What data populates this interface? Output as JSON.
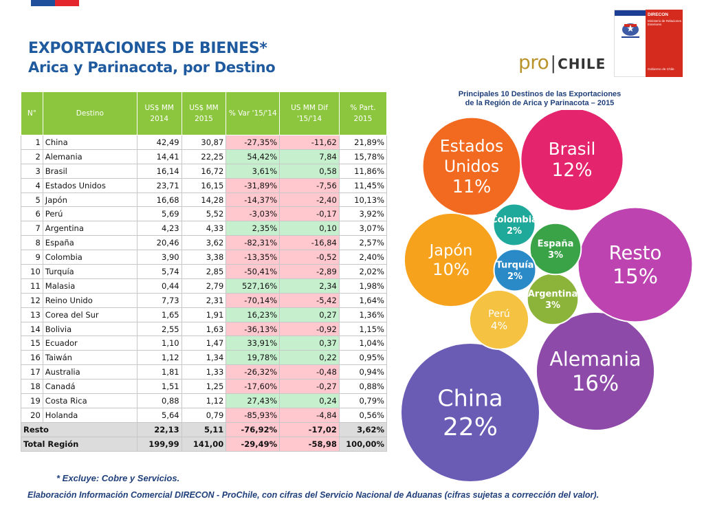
{
  "header": {
    "title": "EXPORTACIONES DE BIENES*",
    "subtitle": "Arica y Parinacota, por Destino"
  },
  "logos": {
    "prochile_pro": "pro",
    "prochile_sep": "|",
    "prochile_chile": "CHILE",
    "direcon_name": "DIRECON",
    "direcon_ministry": "Ministerio de Relaciones Exteriores",
    "direcon_gov": "Gobierno de Chile"
  },
  "table": {
    "headers": [
      "N°",
      "Destino",
      "US$ MM 2014",
      "US$ MM 2015",
      "% Var '15/'14",
      "US MM Dif '15/'14",
      "% Part. 2015"
    ],
    "rows": [
      {
        "n": "1",
        "destino": "China",
        "v2014": "42,49",
        "v2015": "30,87",
        "var": "-27,35%",
        "dif": "-11,62",
        "part": "21,89%",
        "sign": "neg"
      },
      {
        "n": "2",
        "destino": "Alemania",
        "v2014": "14,41",
        "v2015": "22,25",
        "var": "54,42%",
        "dif": "7,84",
        "part": "15,78%",
        "sign": "pos"
      },
      {
        "n": "3",
        "destino": "Brasil",
        "v2014": "16,14",
        "v2015": "16,72",
        "var": "3,61%",
        "dif": "0,58",
        "part": "11,86%",
        "sign": "pos"
      },
      {
        "n": "4",
        "destino": "Estados Unidos",
        "v2014": "23,71",
        "v2015": "16,15",
        "var": "-31,89%",
        "dif": "-7,56",
        "part": "11,45%",
        "sign": "neg"
      },
      {
        "n": "5",
        "destino": "Japón",
        "v2014": "16,68",
        "v2015": "14,28",
        "var": "-14,37%",
        "dif": "-2,40",
        "part": "10,13%",
        "sign": "neg"
      },
      {
        "n": "6",
        "destino": "Perú",
        "v2014": "5,69",
        "v2015": "5,52",
        "var": "-3,03%",
        "dif": "-0,17",
        "part": "3,92%",
        "sign": "neg"
      },
      {
        "n": "7",
        "destino": "Argentina",
        "v2014": "4,23",
        "v2015": "4,33",
        "var": "2,35%",
        "dif": "0,10",
        "part": "3,07%",
        "sign": "pos"
      },
      {
        "n": "8",
        "destino": "España",
        "v2014": "20,46",
        "v2015": "3,62",
        "var": "-82,31%",
        "dif": "-16,84",
        "part": "2,57%",
        "sign": "neg"
      },
      {
        "n": "9",
        "destino": "Colombia",
        "v2014": "3,90",
        "v2015": "3,38",
        "var": "-13,35%",
        "dif": "-0,52",
        "part": "2,40%",
        "sign": "neg"
      },
      {
        "n": "10",
        "destino": "Turquía",
        "v2014": "5,74",
        "v2015": "2,85",
        "var": "-50,41%",
        "dif": "-2,89",
        "part": "2,02%",
        "sign": "neg"
      },
      {
        "n": "11",
        "destino": "Malasia",
        "v2014": "0,44",
        "v2015": "2,79",
        "var": "527,16%",
        "dif": "2,34",
        "part": "1,98%",
        "sign": "pos"
      },
      {
        "n": "12",
        "destino": "Reino Unido",
        "v2014": "7,73",
        "v2015": "2,31",
        "var": "-70,14%",
        "dif": "-5,42",
        "part": "1,64%",
        "sign": "neg"
      },
      {
        "n": "13",
        "destino": "Corea del Sur",
        "v2014": "1,65",
        "v2015": "1,91",
        "var": "16,23%",
        "dif": "0,27",
        "part": "1,36%",
        "sign": "pos"
      },
      {
        "n": "14",
        "destino": "Bolivia",
        "v2014": "2,55",
        "v2015": "1,63",
        "var": "-36,13%",
        "dif": "-0,92",
        "part": "1,15%",
        "sign": "neg"
      },
      {
        "n": "15",
        "destino": "Ecuador",
        "v2014": "1,10",
        "v2015": "1,47",
        "var": "33,91%",
        "dif": "0,37",
        "part": "1,04%",
        "sign": "pos"
      },
      {
        "n": "16",
        "destino": "Taiwán",
        "v2014": "1,12",
        "v2015": "1,34",
        "var": "19,78%",
        "dif": "0,22",
        "part": "0,95%",
        "sign": "pos"
      },
      {
        "n": "17",
        "destino": "Australia",
        "v2014": "1,81",
        "v2015": "1,33",
        "var": "-26,32%",
        "dif": "-0,48",
        "part": "0,94%",
        "sign": "neg"
      },
      {
        "n": "18",
        "destino": "Canadá",
        "v2014": "1,51",
        "v2015": "1,25",
        "var": "-17,60%",
        "dif": "-0,27",
        "part": "0,88%",
        "sign": "neg"
      },
      {
        "n": "19",
        "destino": "Costa Rica",
        "v2014": "0,88",
        "v2015": "1,12",
        "var": "27,43%",
        "dif": "0,24",
        "part": "0,79%",
        "sign": "pos"
      },
      {
        "n": "20",
        "destino": "Holanda",
        "v2014": "5,64",
        "v2015": "0,79",
        "var": "-85,93%",
        "dif": "-4,84",
        "part": "0,56%",
        "sign": "neg"
      }
    ],
    "totals": [
      {
        "label": "Resto",
        "v2014": "22,13",
        "v2015": "5,11",
        "var": "-76,92%",
        "dif": "-17,02",
        "part": "3,62%"
      },
      {
        "label": "Total Región",
        "v2014": "199,99",
        "v2015": "141,00",
        "var": "-29,49%",
        "dif": "-58,98",
        "part": "100,00%"
      }
    ]
  },
  "colors": {
    "header_green": "#8cc63e",
    "positive_fill": "#c6efce",
    "negative_fill": "#ffc7ce",
    "title_blue": "#1f5a9e"
  },
  "chart_data": {
    "type": "bubble",
    "title": "Principales 10 Destinos de las Exportaciones",
    "subtitle": "de la Región de Arica y Parinacota – 2015",
    "unit": "%",
    "series": [
      {
        "name": "China",
        "label_lines": [
          "China"
        ],
        "value": 22,
        "value_label": "22%",
        "color": "#6a5bb5"
      },
      {
        "name": "Alemania",
        "label_lines": [
          "Alemania"
        ],
        "value": 16,
        "value_label": "16%",
        "color": "#8d4aa8"
      },
      {
        "name": "Resto",
        "label_lines": [
          "Resto"
        ],
        "value": 15,
        "value_label": "15%",
        "color": "#bd44b0"
      },
      {
        "name": "Brasil",
        "label_lines": [
          "Brasil"
        ],
        "value": 12,
        "value_label": "12%",
        "color": "#e4246d"
      },
      {
        "name": "Estados Unidos",
        "label_lines": [
          "Estados",
          "Unidos"
        ],
        "value": 11,
        "value_label": "11%",
        "color": "#f16a20"
      },
      {
        "name": "Japón",
        "label_lines": [
          "Japón"
        ],
        "value": 10,
        "value_label": "10%",
        "color": "#f7a21c"
      },
      {
        "name": "Perú",
        "label_lines": [
          "Perú"
        ],
        "value": 4,
        "value_label": "4%",
        "color": "#f5c242"
      },
      {
        "name": "Argentina",
        "label_lines": [
          "Argentina"
        ],
        "value": 3,
        "value_label": "3%",
        "color": "#8db43a"
      },
      {
        "name": "España",
        "label_lines": [
          "España"
        ],
        "value": 3,
        "value_label": "3%",
        "color": "#3aa348"
      },
      {
        "name": "Colombia",
        "label_lines": [
          "Colombia"
        ],
        "value": 2,
        "value_label": "2%",
        "color": "#1fa99a"
      },
      {
        "name": "Turquía",
        "label_lines": [
          "Turquía"
        ],
        "value": 2,
        "value_label": "2%",
        "color": "#2a8ac8"
      }
    ]
  },
  "footer": {
    "note": "* Excluye: Cobre y Servicios.",
    "source": "Elaboración Información Comercial DIRECON - ProChile, con cifras del Servicio Nacional de Aduanas (cifras sujetas a corrección del valor)."
  }
}
